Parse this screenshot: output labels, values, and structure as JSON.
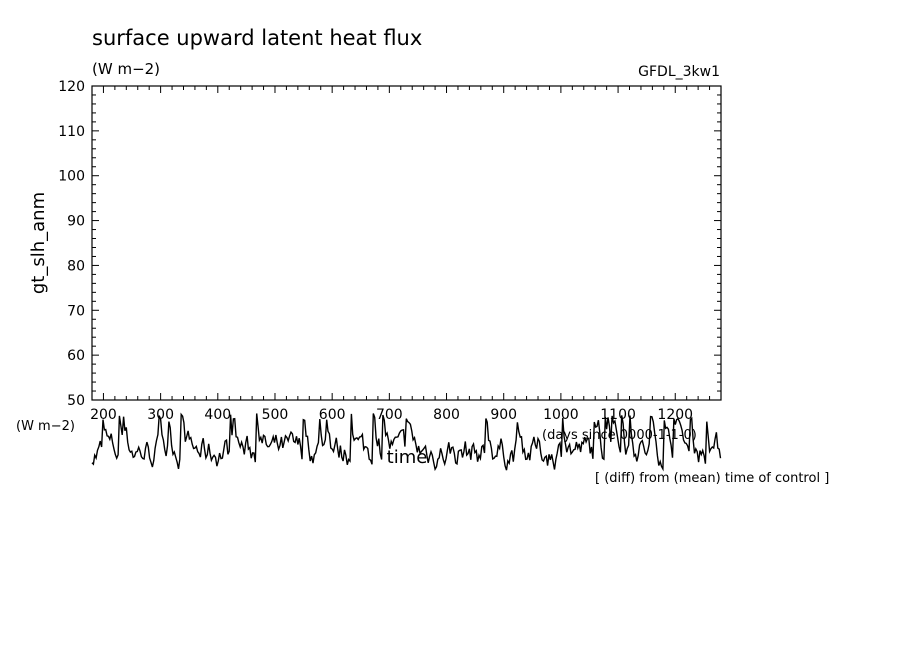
{
  "chart_data": {
    "type": "line",
    "title": "surface upward latent heat flux",
    "subtitle": "(W m−2)",
    "model_label": "GFDL_3kw1",
    "ylabel": "gt_slh_anm",
    "y_unit_label": "(W m−2)",
    "xlabel": "time",
    "x_unit_label": "(days since 0000-1-1-0)",
    "note": "[ (diff) from (mean) time of control ]",
    "xlim": [
      180,
      1280
    ],
    "ylim": [
      50,
      120
    ],
    "x_ticks": [
      200,
      300,
      400,
      500,
      600,
      700,
      800,
      900,
      1000,
      1100,
      1200
    ],
    "y_ticks": [
      50,
      60,
      70,
      80,
      90,
      100,
      110,
      120
    ],
    "grid": false,
    "series": [
      {
        "values_note": "",
        "x": [
          180,
          1280
        ],
        "y_noise_band": [
          30,
          47
        ],
        "style": "black solid"
      }
    ]
  }
}
